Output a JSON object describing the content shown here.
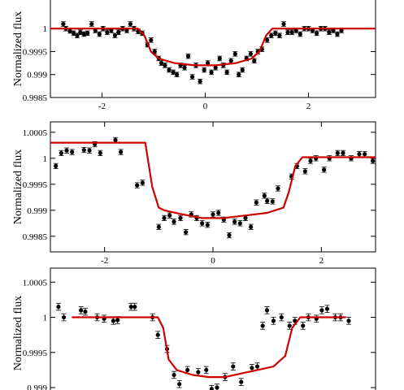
{
  "colors": {
    "model": "#cc0000",
    "points": "#000000",
    "axis": "#000000"
  },
  "chart_data": [
    {
      "type": "scatter",
      "ylabel": "Normalized flux",
      "xlim": [
        -3.0,
        3.3
      ],
      "ylim": [
        0.9985,
        1.0008
      ],
      "xticks": [
        -2,
        0,
        2
      ],
      "xtick_labels": [
        "-2",
        "0",
        "2"
      ],
      "yticks": [
        0.9985,
        0.999,
        0.9995,
        1
      ],
      "ytick_labels": [
        "0.9985",
        "0.999",
        "0.9995",
        "1"
      ],
      "grid": false,
      "legend": "none",
      "series": [
        {
          "kind": "points",
          "x": [
            -2.75,
            -2.7,
            -2.62,
            -2.55,
            -2.48,
            -2.42,
            -2.35,
            -2.28,
            -2.2,
            -2.13,
            -2.05,
            -1.98,
            -1.9,
            -1.82,
            -1.75,
            -1.68,
            -1.6,
            -1.52,
            -1.45,
            -1.38,
            -1.3,
            -1.22,
            -1.12,
            -1.05,
            -0.98,
            -0.9,
            -0.85,
            -0.78,
            -0.7,
            -0.62,
            -0.55,
            -0.48,
            -0.4,
            -0.33,
            -0.25,
            -0.18,
            -0.1,
            -0.02,
            0.05,
            0.12,
            0.2,
            0.28,
            0.35,
            0.42,
            0.5,
            0.58,
            0.65,
            0.72,
            0.8,
            0.88,
            0.95,
            1.02,
            1.1,
            1.2,
            1.28,
            1.36,
            1.44,
            1.52,
            1.6,
            1.68,
            1.76,
            1.84,
            1.92,
            2.0,
            2.08,
            2.16,
            2.24,
            2.32,
            2.4,
            2.48,
            2.56,
            2.64
          ],
          "y": [
            1.0001,
            1.0,
            0.99995,
            0.9999,
            0.99985,
            0.99992,
            0.99988,
            0.9999,
            1.0001,
            0.99996,
            0.99988,
            1.0,
            0.99992,
            0.99996,
            0.99985,
            0.99992,
            1.0,
            0.99996,
            1.0001,
            1.0,
            0.99994,
            0.9999,
            0.99965,
            0.99975,
            0.9995,
            0.99935,
            0.99925,
            0.9992,
            0.9991,
            0.99905,
            0.999,
            0.9992,
            0.99915,
            0.9994,
            0.99895,
            0.9992,
            0.99885,
            0.9991,
            0.99925,
            0.99905,
            0.99915,
            0.99935,
            0.9992,
            0.99905,
            0.9993,
            0.99945,
            0.999,
            0.9991,
            0.99935,
            0.99945,
            0.9993,
            0.9995,
            0.99955,
            0.99975,
            0.99985,
            0.9999,
            0.99985,
            1.0001,
            0.99992,
            0.99992,
            0.99996,
            0.99988,
            1.0,
            1.0,
            0.99996,
            0.9999,
            1.0,
            1.0,
            0.99992,
            0.99996,
            0.99988,
            0.99996
          ],
          "err": [
            5e-05,
            5e-05,
            5e-05,
            5e-05,
            5e-05,
            5e-05,
            5e-05,
            5e-05,
            5e-05,
            5e-05,
            5e-05,
            5e-05,
            5e-05,
            5e-05,
            5e-05,
            5e-05,
            5e-05,
            5e-05,
            5e-05,
            5e-05,
            5e-05,
            5e-05,
            5e-05,
            5e-05,
            5e-05,
            5e-05,
            5e-05,
            5e-05,
            5e-05,
            5e-05,
            5e-05,
            5e-05,
            5e-05,
            5e-05,
            5e-05,
            5e-05,
            5e-05,
            5e-05,
            5e-05,
            5e-05,
            5e-05,
            5e-05,
            5e-05,
            5e-05,
            5e-05,
            5e-05,
            5e-05,
            5e-05,
            5e-05,
            5e-05,
            5e-05,
            5e-05,
            5e-05,
            5e-05,
            5e-05,
            5e-05,
            5e-05,
            5e-05,
            5e-05,
            5e-05,
            5e-05,
            5e-05,
            5e-05,
            5e-05,
            5e-05,
            5e-05,
            5e-05,
            5e-05,
            5e-05,
            5e-05,
            5e-05,
            5e-05
          ]
        },
        {
          "kind": "line",
          "x": [
            -3.0,
            -1.7,
            -1.3,
            -1.18,
            -1.05,
            -0.9,
            -0.6,
            -0.2,
            0.2,
            0.6,
            0.9,
            1.05,
            1.18,
            1.3,
            1.7,
            3.3
          ],
          "y": [
            1.0,
            1.0,
            1.0,
            0.99985,
            0.9995,
            0.99935,
            0.99925,
            0.9992,
            0.9992,
            0.99925,
            0.99935,
            0.9995,
            0.99985,
            1.0,
            1.0,
            1.0
          ]
        }
      ]
    },
    {
      "type": "scatter",
      "ylabel": "Normalized flux",
      "xlim": [
        -3.0,
        3.0
      ],
      "ylim": [
        0.9982,
        1.0007
      ],
      "xticks": [
        -2,
        0,
        2
      ],
      "xtick_labels": [
        "-2",
        "0",
        "2"
      ],
      "yticks": [
        0.9985,
        0.999,
        0.9995,
        1,
        1.0005
      ],
      "ytick_labels": [
        "0.9985",
        "0.999",
        "0.9995",
        "1",
        "1.0005"
      ],
      "grid": false,
      "legend": "none",
      "series": [
        {
          "kind": "points",
          "x": [
            -2.9,
            -2.8,
            -2.7,
            -2.6,
            -2.38,
            -2.28,
            -2.18,
            -2.08,
            -1.8,
            -1.7,
            -1.4,
            -1.3,
            -1.0,
            -0.9,
            -0.8,
            -0.72,
            -0.6,
            -0.5,
            -0.4,
            -0.3,
            -0.2,
            -0.1,
            0.0,
            0.1,
            0.2,
            0.3,
            0.4,
            0.5,
            0.6,
            0.7,
            0.8,
            0.95,
            1.0,
            1.1,
            1.2,
            1.45,
            1.55,
            1.7,
            1.8,
            1.9,
            2.05,
            2.15,
            2.3,
            2.4,
            2.55,
            2.7,
            2.8,
            2.95
          ],
          "y": [
            0.99985,
            1.0001,
            1.00015,
            1.00012,
            1.00016,
            1.00015,
            1.00027,
            1.0001,
            1.00035,
            1.00012,
            0.99948,
            0.99953,
            0.99868,
            0.99885,
            0.9989,
            0.99878,
            0.99885,
            0.99858,
            0.99892,
            0.99885,
            0.99875,
            0.99872,
            0.99892,
            0.99895,
            0.99882,
            0.99852,
            0.99878,
            0.99875,
            0.99885,
            0.99868,
            0.99915,
            0.99928,
            0.99918,
            0.99917,
            0.99942,
            0.99965,
            0.99985,
            0.99975,
            0.99995,
            1.0,
            0.99978,
            1.0,
            1.0001,
            1.0001,
            1.0,
            1.00008,
            1.00008,
            0.99995
          ],
          "err": [
            5e-05,
            5e-05,
            5e-05,
            5e-05,
            5e-05,
            5e-05,
            5e-05,
            5e-05,
            5e-05,
            5e-05,
            5e-05,
            5e-05,
            5e-05,
            5e-05,
            5e-05,
            5e-05,
            5e-05,
            5e-05,
            5e-05,
            5e-05,
            5e-05,
            5e-05,
            5e-05,
            5e-05,
            5e-05,
            5e-05,
            5e-05,
            5e-05,
            5e-05,
            5e-05,
            5e-05,
            5e-05,
            5e-05,
            5e-05,
            5e-05,
            5e-05,
            5e-05,
            5e-05,
            5e-05,
            5e-05,
            5e-05,
            5e-05,
            5e-05,
            5e-05,
            5e-05,
            5e-05,
            5e-05,
            5e-05
          ]
        },
        {
          "kind": "line",
          "x": [
            -3.0,
            -1.25,
            -1.12,
            -1.0,
            -0.9,
            -0.6,
            -0.2,
            0.2,
            0.6,
            1.0,
            1.3,
            1.4,
            1.52,
            1.65,
            3.0
          ],
          "y": [
            1.0003,
            1.0003,
            0.99945,
            0.99905,
            0.999,
            0.99893,
            0.99885,
            0.99885,
            0.9989,
            0.99895,
            0.99905,
            0.99935,
            0.99985,
            1.00002,
            1.00002
          ]
        }
      ]
    },
    {
      "type": "scatter",
      "ylabel": "Normalized flux",
      "xlim": [
        -2.95,
        3.1
      ],
      "ylim": [
        0.99885,
        1.0007
      ],
      "xticks": [],
      "xtick_labels": [],
      "yticks": [
        0.999,
        0.9995,
        1,
        1.0005
      ],
      "ytick_labels": [
        "0.999",
        "0.9995",
        "1",
        "1.0005"
      ],
      "grid": false,
      "legend": "none",
      "series": [
        {
          "kind": "points",
          "x": [
            -2.8,
            -2.7,
            -2.38,
            -2.3,
            -2.08,
            -1.95,
            -1.78,
            -1.7,
            -1.45,
            -1.38,
            -1.05,
            -0.95,
            -0.78,
            -0.65,
            -0.55,
            -0.4,
            -0.25,
            -0.2,
            -0.05,
            0.05,
            0.15,
            0.3,
            0.45,
            0.6,
            0.8,
            0.9,
            1.0,
            1.08,
            1.2,
            1.35,
            1.5,
            1.6,
            1.75,
            1.85,
            2.0,
            2.1,
            2.2,
            2.35,
            2.45,
            2.6
          ],
          "y": [
            1.00015,
            1.0,
            1.0001,
            1.00008,
            1.0,
            0.99998,
            0.99995,
            0.99996,
            1.00015,
            1.00015,
            1.0,
            0.99975,
            0.99955,
            0.99918,
            0.99905,
            0.99925,
            0.9989,
            0.99922,
            0.99925,
            0.99898,
            0.999,
            0.99915,
            0.9993,
            0.99908,
            0.99928,
            0.9993,
            0.99988,
            1.0001,
            0.99995,
            1.0,
            0.99988,
            0.99995,
            0.99988,
            1.0,
            0.99998,
            1.0001,
            1.00012,
            1.0,
            1.0,
            0.99995
          ],
          "err": [
            5e-05,
            5e-05,
            5e-05,
            5e-05,
            5e-05,
            5e-05,
            5e-05,
            5e-05,
            5e-05,
            5e-05,
            5e-05,
            5e-05,
            5e-05,
            5e-05,
            5e-05,
            5e-05,
            5e-05,
            5e-05,
            5e-05,
            5e-05,
            5e-05,
            5e-05,
            5e-05,
            5e-05,
            5e-05,
            5e-05,
            5e-05,
            5e-05,
            5e-05,
            5e-05,
            5e-05,
            5e-05,
            5e-05,
            5e-05,
            5e-05,
            5e-05,
            5e-05,
            5e-05,
            5e-05,
            5e-05
          ]
        },
        {
          "kind": "line",
          "x": [
            -2.55,
            -1.3,
            -0.95,
            -0.85,
            -0.75,
            -0.6,
            -0.3,
            0.0,
            0.3,
            0.6,
            0.9,
            1.2,
            1.42,
            1.55,
            1.7,
            2.55
          ],
          "y": [
            1.0,
            1.0,
            1.0,
            0.99985,
            0.9994,
            0.99925,
            0.99918,
            0.99915,
            0.99915,
            0.9992,
            0.99925,
            0.9993,
            0.99945,
            0.99985,
            1.0,
            1.0
          ]
        }
      ]
    }
  ]
}
